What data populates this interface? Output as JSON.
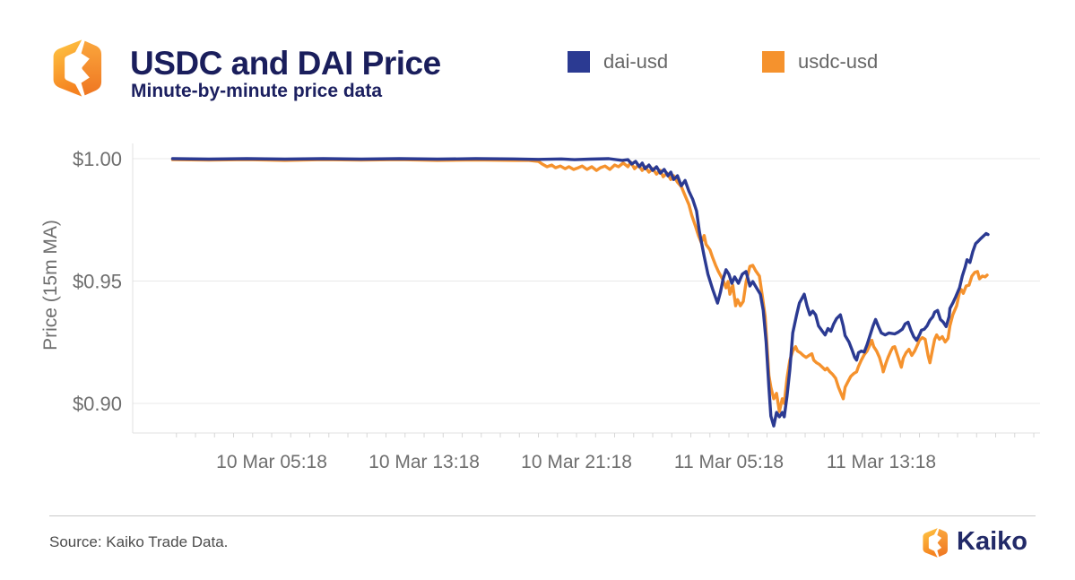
{
  "header": {
    "title": "USDC and DAI Price",
    "subtitle": "Minute-by-minute price data"
  },
  "footer": {
    "source": "Source: Kaiko Trade Data.",
    "brand": "Kaiko"
  },
  "colors": {
    "dai_blue": "#2b3a92",
    "usdc_orange": "#f5922d",
    "title_navy": "#1a1e5c",
    "axis_gray": "#6e6e6e",
    "gridline": "#e8e8e8",
    "axis_line": "#e0e0e0",
    "minor_tick": "#d6d6d6"
  },
  "chart_data": {
    "type": "line",
    "title": "USDC and DAI Price",
    "subtitle": "Minute-by-minute price data",
    "xlabel": "",
    "ylabel": "Price (15m MA)",
    "x_unit": "hours since 10 Mar 00:00",
    "grid": "horizontal-only",
    "legend_position": "top",
    "ylim": [
      0.886,
      1.006
    ],
    "y_ticks": [
      {
        "value": 1.0,
        "label": "$1.00"
      },
      {
        "value": 0.95,
        "label": "$0.95"
      },
      {
        "value": 0.9,
        "label": "$0.90"
      }
    ],
    "x_ticks": [
      {
        "hours": 5.3,
        "label": "10 Mar 05:18"
      },
      {
        "hours": 13.3,
        "label": "10 Mar 13:18"
      },
      {
        "hours": 21.3,
        "label": "10 Mar 21:18"
      },
      {
        "hours": 29.3,
        "label": "11 Mar 05:18"
      },
      {
        "hours": 37.3,
        "label": "11 Mar 13:18"
      }
    ],
    "series": [
      {
        "name": "dai-usd",
        "color": "#2b3a92",
        "points": [
          [
            0.1,
            1
          ],
          [
            2,
            0.9998
          ],
          [
            4,
            1
          ],
          [
            6,
            0.9998
          ],
          [
            8,
            1
          ],
          [
            10,
            0.9998
          ],
          [
            12,
            1
          ],
          [
            14,
            0.9998
          ],
          [
            16,
            1
          ],
          [
            18,
            0.9999
          ],
          [
            19.3,
            0.9997
          ],
          [
            20.5,
            0.9999
          ],
          [
            21.2,
            0.9996
          ],
          [
            22,
            0.9998
          ],
          [
            23,
            1
          ],
          [
            23.7,
            0.9993
          ],
          [
            24,
            0.9996
          ],
          [
            24.2,
            0.9978
          ],
          [
            24.4,
            0.9989
          ],
          [
            24.6,
            0.9967
          ],
          [
            24.75,
            0.9982
          ],
          [
            24.9,
            0.9959
          ],
          [
            25.1,
            0.9974
          ],
          [
            25.3,
            0.9952
          ],
          [
            25.5,
            0.9967
          ],
          [
            25.7,
            0.9941
          ],
          [
            25.9,
            0.9956
          ],
          [
            26.1,
            0.993
          ],
          [
            26.25,
            0.9945
          ],
          [
            26.4,
            0.9915
          ],
          [
            26.6,
            0.993
          ],
          [
            26.8,
            0.9889
          ],
          [
            27,
            0.9911
          ],
          [
            27.2,
            0.9867
          ],
          [
            27.4,
            0.9834
          ],
          [
            27.6,
            0.9786
          ],
          [
            27.75,
            0.9701
          ],
          [
            28,
            0.9601
          ],
          [
            28.2,
            0.9528
          ],
          [
            28.45,
            0.9465
          ],
          [
            28.7,
            0.941
          ],
          [
            28.85,
            0.9454
          ],
          [
            29,
            0.9509
          ],
          [
            29.15,
            0.9546
          ],
          [
            29.3,
            0.9528
          ],
          [
            29.45,
            0.9491
          ],
          [
            29.6,
            0.9517
          ],
          [
            29.8,
            0.9491
          ],
          [
            30,
            0.9528
          ],
          [
            30.2,
            0.9539
          ],
          [
            30.4,
            0.948
          ],
          [
            30.55,
            0.9498
          ],
          [
            30.75,
            0.9472
          ],
          [
            30.95,
            0.9446
          ],
          [
            31.1,
            0.938
          ],
          [
            31.25,
            0.9251
          ],
          [
            31.4,
            0.9066
          ],
          [
            31.5,
            0.8948
          ],
          [
            31.65,
            0.8908
          ],
          [
            31.8,
            0.8963
          ],
          [
            31.95,
            0.8945
          ],
          [
            32.1,
            0.8963
          ],
          [
            32.2,
            0.8945
          ],
          [
            32.35,
            0.903
          ],
          [
            32.5,
            0.914
          ],
          [
            32.65,
            0.9288
          ],
          [
            32.85,
            0.9362
          ],
          [
            33,
            0.941
          ],
          [
            33.25,
            0.9446
          ],
          [
            33.4,
            0.9399
          ],
          [
            33.55,
            0.9362
          ],
          [
            33.7,
            0.9377
          ],
          [
            33.85,
            0.9362
          ],
          [
            34,
            0.9317
          ],
          [
            34.2,
            0.9295
          ],
          [
            34.35,
            0.928
          ],
          [
            34.5,
            0.9306
          ],
          [
            34.65,
            0.9295
          ],
          [
            34.8,
            0.9325
          ],
          [
            34.95,
            0.9347
          ],
          [
            35.15,
            0.9362
          ],
          [
            35.3,
            0.9317
          ],
          [
            35.4,
            0.9277
          ],
          [
            35.6,
            0.9251
          ],
          [
            35.75,
            0.9221
          ],
          [
            35.9,
            0.9188
          ],
          [
            36,
            0.9177
          ],
          [
            36.1,
            0.9207
          ],
          [
            36.25,
            0.9214
          ],
          [
            36.4,
            0.921
          ],
          [
            36.55,
            0.924
          ],
          [
            36.7,
            0.9277
          ],
          [
            36.85,
            0.9314
          ],
          [
            37,
            0.9343
          ],
          [
            37.15,
            0.9314
          ],
          [
            37.3,
            0.9288
          ],
          [
            37.5,
            0.928
          ],
          [
            37.7,
            0.9288
          ],
          [
            38,
            0.9284
          ],
          [
            38.2,
            0.9292
          ],
          [
            38.4,
            0.9303
          ],
          [
            38.55,
            0.9325
          ],
          [
            38.7,
            0.9332
          ],
          [
            38.85,
            0.9299
          ],
          [
            39,
            0.9273
          ],
          [
            39.15,
            0.9258
          ],
          [
            39.3,
            0.928
          ],
          [
            39.4,
            0.9299
          ],
          [
            39.55,
            0.9303
          ],
          [
            39.7,
            0.9317
          ],
          [
            39.85,
            0.934
          ],
          [
            40,
            0.9354
          ],
          [
            40.1,
            0.9373
          ],
          [
            40.25,
            0.938
          ],
          [
            40.4,
            0.9343
          ],
          [
            40.55,
            0.9332
          ],
          [
            40.7,
            0.9314
          ],
          [
            40.85,
            0.9354
          ],
          [
            40.9,
            0.9388
          ],
          [
            41.05,
            0.941
          ],
          [
            41.2,
            0.9435
          ],
          [
            41.4,
            0.9472
          ],
          [
            41.55,
            0.952
          ],
          [
            41.7,
            0.9557
          ],
          [
            41.8,
            0.9587
          ],
          [
            41.95,
            0.9576
          ],
          [
            42.1,
            0.962
          ],
          [
            42.25,
            0.9653
          ],
          [
            42.4,
            0.9664
          ],
          [
            42.5,
            0.9672
          ],
          [
            42.65,
            0.9683
          ],
          [
            42.8,
            0.9694
          ],
          [
            42.9,
            0.969
          ]
        ]
      },
      {
        "name": "usdc-usd",
        "color": "#f5922d",
        "points": [
          [
            0.1,
            0.9996
          ],
          [
            2,
            0.9994
          ],
          [
            4,
            0.9996
          ],
          [
            6,
            0.9993
          ],
          [
            8,
            0.9996
          ],
          [
            10,
            0.9994
          ],
          [
            12,
            0.9996
          ],
          [
            14,
            0.9993
          ],
          [
            16,
            0.9995
          ],
          [
            18,
            0.9993
          ],
          [
            18.8,
            0.9993
          ],
          [
            19.3,
            0.9989
          ],
          [
            19.5,
            0.9978
          ],
          [
            19.75,
            0.9967
          ],
          [
            20,
            0.9974
          ],
          [
            20.2,
            0.9963
          ],
          [
            20.45,
            0.997
          ],
          [
            20.7,
            0.9959
          ],
          [
            20.9,
            0.9967
          ],
          [
            21.15,
            0.9956
          ],
          [
            21.4,
            0.9963
          ],
          [
            21.6,
            0.997
          ],
          [
            21.85,
            0.9956
          ],
          [
            22.1,
            0.9967
          ],
          [
            22.35,
            0.9952
          ],
          [
            22.55,
            0.9963
          ],
          [
            22.8,
            0.997
          ],
          [
            23.05,
            0.9956
          ],
          [
            23.3,
            0.9974
          ],
          [
            23.5,
            0.9967
          ],
          [
            23.75,
            0.9982
          ],
          [
            24,
            0.9967
          ],
          [
            24.15,
            0.9985
          ],
          [
            24.35,
            0.9959
          ],
          [
            24.55,
            0.9974
          ],
          [
            24.75,
            0.9952
          ],
          [
            24.9,
            0.9967
          ],
          [
            25.1,
            0.9945
          ],
          [
            25.3,
            0.9959
          ],
          [
            25.5,
            0.9937
          ],
          [
            25.7,
            0.9952
          ],
          [
            25.85,
            0.9926
          ],
          [
            26.05,
            0.9941
          ],
          [
            26.25,
            0.9915
          ],
          [
            26.4,
            0.993
          ],
          [
            26.6,
            0.9904
          ],
          [
            26.8,
            0.9886
          ],
          [
            27,
            0.9849
          ],
          [
            27.2,
            0.9812
          ],
          [
            27.35,
            0.9768
          ],
          [
            27.55,
            0.9723
          ],
          [
            27.7,
            0.9686
          ],
          [
            27.85,
            0.9657
          ],
          [
            28,
            0.9686
          ],
          [
            28.1,
            0.965
          ],
          [
            28.3,
            0.9628
          ],
          [
            28.45,
            0.9594
          ],
          [
            28.6,
            0.9565
          ],
          [
            28.75,
            0.9539
          ],
          [
            28.85,
            0.9524
          ],
          [
            29,
            0.9502
          ],
          [
            29.15,
            0.9472
          ],
          [
            29.25,
            0.9498
          ],
          [
            29.35,
            0.9446
          ],
          [
            29.5,
            0.9483
          ],
          [
            29.65,
            0.9399
          ],
          [
            29.75,
            0.9424
          ],
          [
            29.9,
            0.9399
          ],
          [
            30.05,
            0.9417
          ],
          [
            30.2,
            0.9495
          ],
          [
            30.4,
            0.956
          ],
          [
            30.55,
            0.9564
          ],
          [
            30.7,
            0.9542
          ],
          [
            30.9,
            0.952
          ],
          [
            31.05,
            0.944
          ],
          [
            31.2,
            0.9355
          ],
          [
            31.4,
            0.9114
          ],
          [
            31.5,
            0.9066
          ],
          [
            31.65,
            0.9019
          ],
          [
            31.8,
            0.9041
          ],
          [
            31.95,
            0.8967
          ],
          [
            32.1,
            0.9019
          ],
          [
            32.2,
            0.9
          ],
          [
            32.35,
            0.9103
          ],
          [
            32.5,
            0.9177
          ],
          [
            32.65,
            0.9214
          ],
          [
            32.8,
            0.9232
          ],
          [
            32.9,
            0.9214
          ],
          [
            33.05,
            0.9207
          ],
          [
            33.2,
            0.9196
          ],
          [
            33.35,
            0.9188
          ],
          [
            33.5,
            0.9196
          ],
          [
            33.65,
            0.9203
          ],
          [
            33.75,
            0.9177
          ],
          [
            33.9,
            0.9166
          ],
          [
            34.05,
            0.9159
          ],
          [
            34.2,
            0.9148
          ],
          [
            34.35,
            0.9137
          ],
          [
            34.45,
            0.9144
          ],
          [
            34.6,
            0.9129
          ],
          [
            34.75,
            0.9118
          ],
          [
            34.9,
            0.9103
          ],
          [
            35.05,
            0.9066
          ],
          [
            35.2,
            0.9037
          ],
          [
            35.3,
            0.9019
          ],
          [
            35.4,
            0.9066
          ],
          [
            35.55,
            0.9089
          ],
          [
            35.7,
            0.9111
          ],
          [
            35.85,
            0.9122
          ],
          [
            36,
            0.9129
          ],
          [
            36.1,
            0.9151
          ],
          [
            36.25,
            0.9177
          ],
          [
            36.4,
            0.9199
          ],
          [
            36.55,
            0.9214
          ],
          [
            36.7,
            0.924
          ],
          [
            36.8,
            0.9258
          ],
          [
            36.9,
            0.9232
          ],
          [
            37.05,
            0.9214
          ],
          [
            37.2,
            0.9188
          ],
          [
            37.35,
            0.9148
          ],
          [
            37.4,
            0.9129
          ],
          [
            37.55,
            0.9166
          ],
          [
            37.65,
            0.9188
          ],
          [
            37.8,
            0.9214
          ],
          [
            37.9,
            0.9229
          ],
          [
            38,
            0.9232
          ],
          [
            38.15,
            0.9196
          ],
          [
            38.3,
            0.9159
          ],
          [
            38.35,
            0.9148
          ],
          [
            38.45,
            0.9185
          ],
          [
            38.6,
            0.9207
          ],
          [
            38.75,
            0.9221
          ],
          [
            38.9,
            0.9196
          ],
          [
            39.05,
            0.9214
          ],
          [
            39.2,
            0.924
          ],
          [
            39.3,
            0.9258
          ],
          [
            39.45,
            0.9269
          ],
          [
            39.6,
            0.9262
          ],
          [
            39.75,
            0.9196
          ],
          [
            39.85,
            0.9166
          ],
          [
            40,
            0.9225
          ],
          [
            40.1,
            0.9262
          ],
          [
            40.2,
            0.928
          ],
          [
            40.35,
            0.9262
          ],
          [
            40.5,
            0.9273
          ],
          [
            40.65,
            0.9251
          ],
          [
            40.8,
            0.9266
          ],
          [
            40.9,
            0.9317
          ],
          [
            41.05,
            0.9362
          ],
          [
            41.25,
            0.9399
          ],
          [
            41.4,
            0.9454
          ],
          [
            41.5,
            0.9465
          ],
          [
            41.6,
            0.945
          ],
          [
            41.75,
            0.948
          ],
          [
            41.9,
            0.9483
          ],
          [
            42.05,
            0.952
          ],
          [
            42.2,
            0.9535
          ],
          [
            42.35,
            0.9539
          ],
          [
            42.45,
            0.9509
          ],
          [
            42.6,
            0.952
          ],
          [
            42.75,
            0.9517
          ],
          [
            42.85,
            0.9524
          ]
        ]
      }
    ]
  }
}
